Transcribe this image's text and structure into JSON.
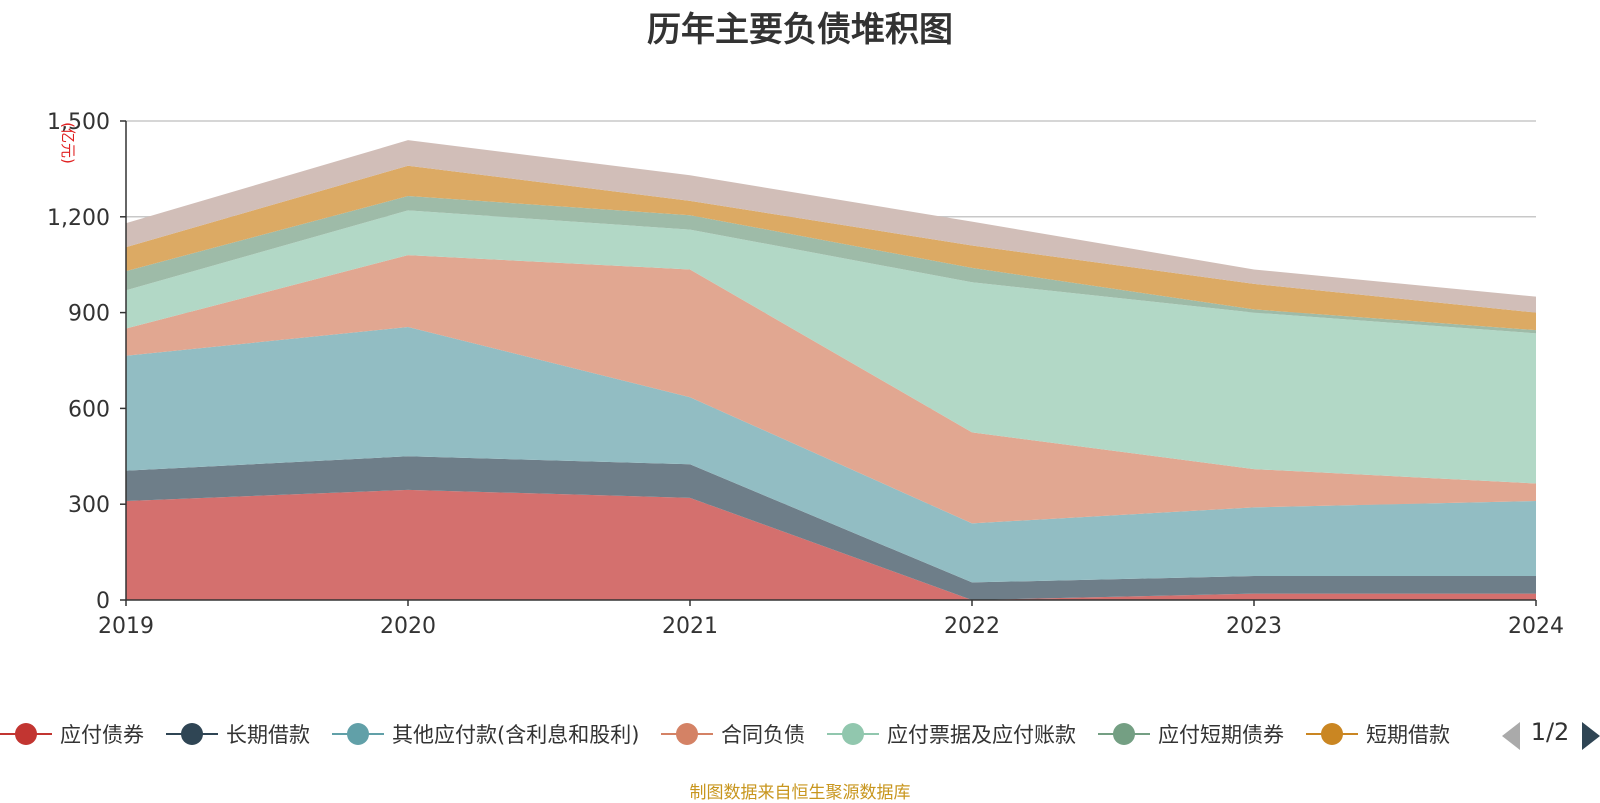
{
  "chart_data": {
    "type": "area",
    "title": "历年主要负债堆积图",
    "ylabel": "(亿元)",
    "xlabel": "",
    "stacked": true,
    "categories": [
      "2019",
      "2020",
      "2021",
      "2022",
      "2023",
      "2024"
    ],
    "ylim": [
      0,
      1500
    ],
    "yticks": [
      0,
      300,
      600,
      900,
      1200,
      1500
    ],
    "ytick_labels": [
      "0",
      "300",
      "600",
      "900",
      "1,200",
      "1,500"
    ],
    "grid": true,
    "series": [
      {
        "name": "应付债券",
        "color": "#c23531",
        "area_color": "#d4706e",
        "values": [
          310,
          345,
          320,
          0,
          20,
          20
        ]
      },
      {
        "name": "长期借款",
        "color": "#2f4554",
        "area_color": "#6e7e89",
        "values": [
          95,
          105,
          105,
          55,
          55,
          55
        ]
      },
      {
        "name": "其他应付款(含利息和股利)",
        "color": "#61a0a8",
        "area_color": "#92bdc3",
        "values": [
          360,
          405,
          210,
          185,
          215,
          235
        ]
      },
      {
        "name": "合同负债",
        "color": "#d48265",
        "area_color": "#e1a791",
        "values": [
          85,
          225,
          400,
          285,
          120,
          55
        ]
      },
      {
        "name": "应付票据及应付账款",
        "color": "#91c7ae",
        "area_color": "#b2d8c6",
        "values": [
          120,
          140,
          125,
          470,
          490,
          470
        ]
      },
      {
        "name": "应付短期债券",
        "color": "#749f83",
        "area_color": "#9ebba8",
        "values": [
          60,
          45,
          45,
          45,
          10,
          10
        ]
      },
      {
        "name": "短期借款",
        "color": "#ca8622",
        "area_color": "#dcaa64",
        "values": [
          75,
          95,
          45,
          70,
          80,
          55
        ]
      },
      {
        "name": "",
        "color": "#bda29a",
        "area_color": "#d1beb8",
        "values": [
          75,
          80,
          80,
          75,
          45,
          50
        ]
      }
    ],
    "legend_position": "bottom",
    "legend_page": "1/2"
  },
  "footer": "制图数据来自恒生聚源数据库"
}
